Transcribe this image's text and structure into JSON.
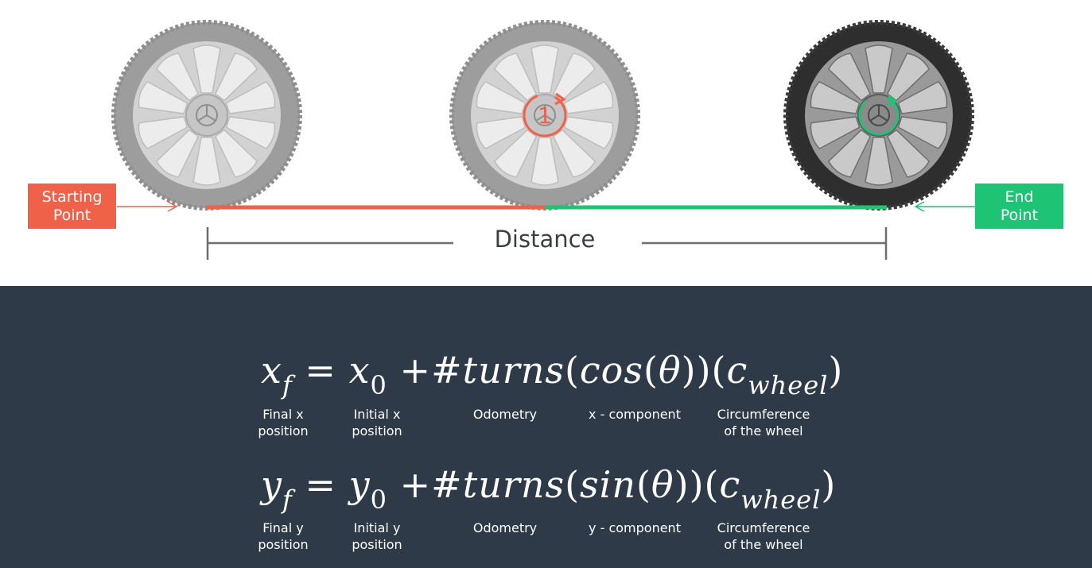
{
  "labels": {
    "start": [
      "Starting",
      "Point"
    ],
    "end": [
      "End",
      "Point"
    ],
    "distance": "Distance"
  },
  "wheels": [
    {
      "name": "start-wheel",
      "tire": "gray"
    },
    {
      "name": "middle-wheel",
      "tire": "gray",
      "turn_marker": "1"
    },
    {
      "name": "end-wheel",
      "tire": "black"
    }
  ],
  "colors": {
    "start": "#f0614a",
    "end": "#1ec373",
    "panel": "#2e3a48",
    "distance_bar": "#6d6d6d"
  },
  "equations": {
    "x": {
      "lhs": "x",
      "lhs_sub": "f",
      "eq": "=",
      "init": "x",
      "init_sub": "0",
      "plus": "+",
      "turns": "#turns",
      "trig": "cos",
      "angle": "θ",
      "c": "c",
      "c_sub": "wheel"
    },
    "y": {
      "lhs": "y",
      "lhs_sub": "f",
      "eq": "=",
      "init": "y",
      "init_sub": "0",
      "plus": "+",
      "turns": "#turns",
      "trig": "sin",
      "angle": "θ",
      "c": "c",
      "c_sub": "wheel"
    }
  },
  "captions": {
    "x": {
      "final": [
        "Final x",
        "position"
      ],
      "initial": [
        "Initial x",
        "position"
      ],
      "odometry": "Odometry",
      "component": "x - component",
      "circumference": [
        "Circumference",
        "of the wheel"
      ]
    },
    "y": {
      "final": [
        "Final y",
        "position"
      ],
      "initial": [
        "Initial y",
        "position"
      ],
      "odometry": "Odometry",
      "component": "y - component",
      "circumference": [
        "Circumference",
        "of the wheel"
      ]
    }
  }
}
